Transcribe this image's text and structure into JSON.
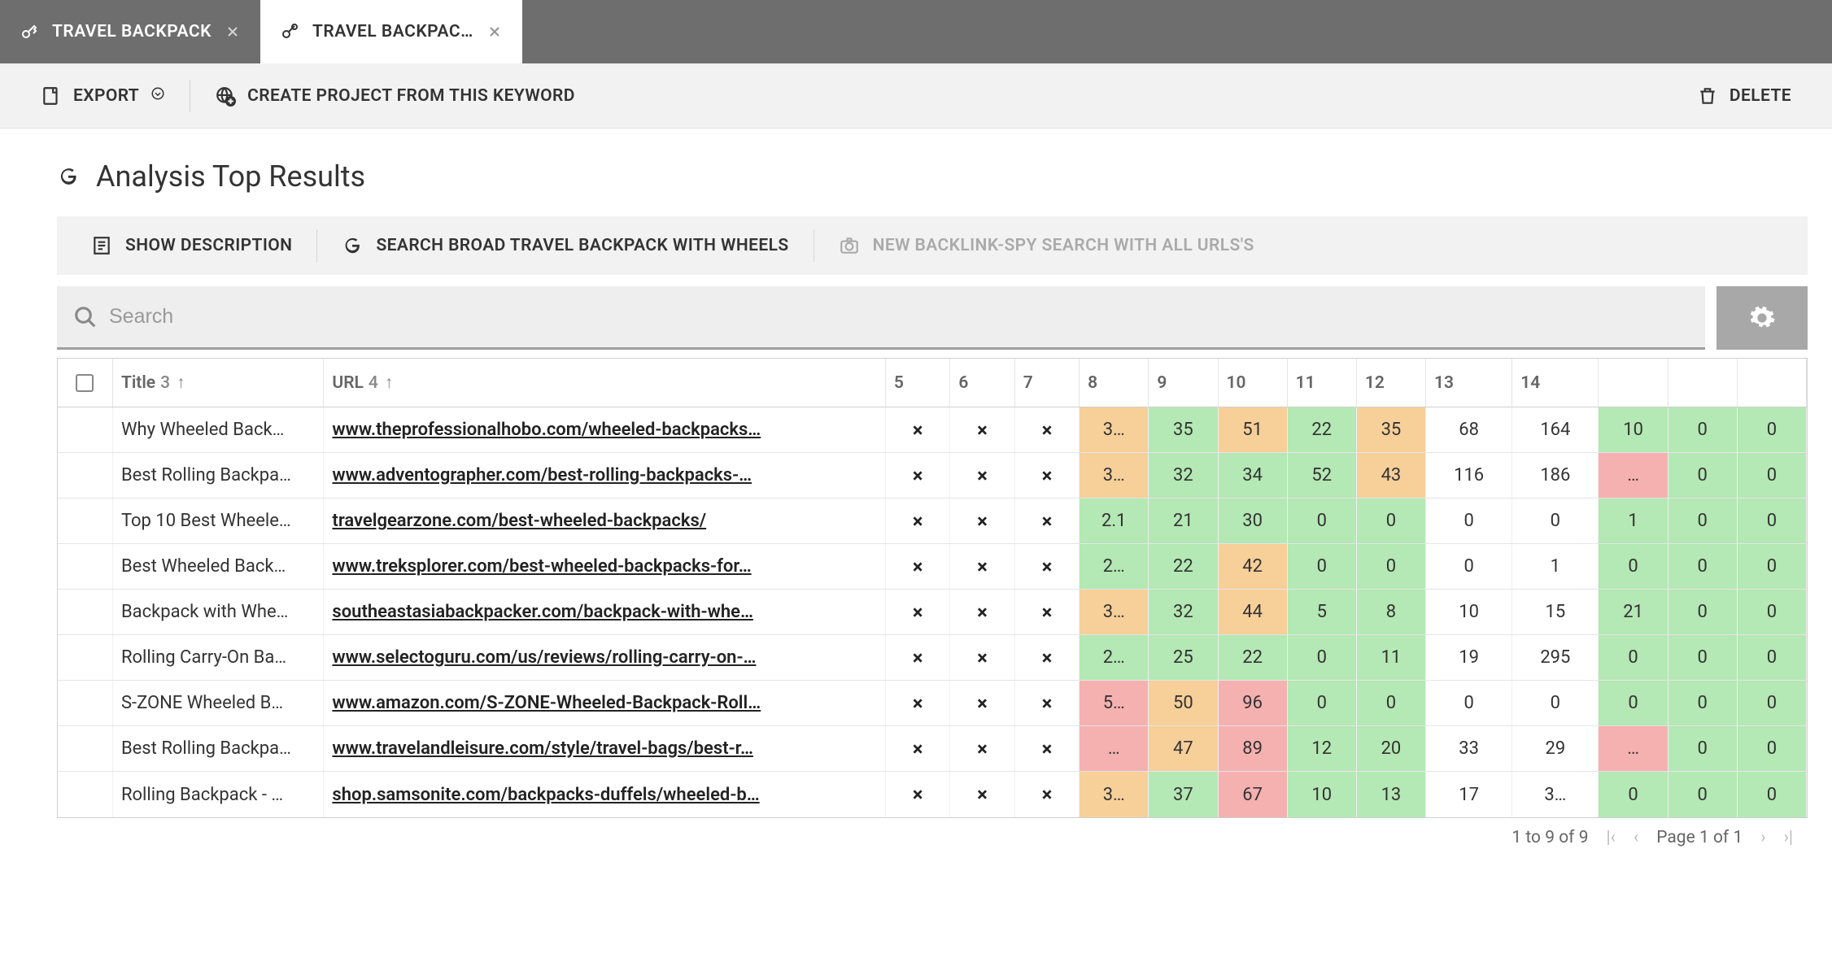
{
  "tabs": [
    {
      "label": "TRAVEL BACKPACK",
      "active": false
    },
    {
      "label": "TRAVEL BACKPAC…",
      "active": true
    }
  ],
  "toolbar": {
    "export": "EXPORT",
    "create_project": "CREATE PROJECT FROM THIS KEYWORD",
    "delete": "DELETE"
  },
  "page_title": "Analysis Top Results",
  "actions": {
    "show_description": "SHOW DESCRIPTION",
    "search_broad": "SEARCH BROAD TRAVEL BACKPACK WITH WHEELS",
    "backlink_spy": "NEW BACKLINK-SPY SEARCH WITH ALL URLS'S"
  },
  "search": {
    "placeholder": "Search"
  },
  "columns": {
    "title": {
      "label": "Title",
      "num": "3"
    },
    "url": {
      "label": "URL",
      "num": "4"
    },
    "c5": "5",
    "c6": "6",
    "c7": "7",
    "c8": "8",
    "c9": "9",
    "c10": "10",
    "c11": "11",
    "c12": "12",
    "c13": "13",
    "c14": "14"
  },
  "cell_colors": {
    "green": "#b4e8b4",
    "orange": "#f7cf99",
    "red": "#f5b0b0",
    "none": "#ffffff"
  },
  "rows": [
    {
      "title": "Why Wheeled Back…",
      "url": "www.theprofessionalhobo.com/wheeled-backpacks…",
      "v": [
        "×",
        "×",
        "×",
        "3…",
        "35",
        "51",
        "22",
        "35",
        "68",
        "164",
        "10",
        "0",
        "0"
      ],
      "c": [
        "",
        "",
        "",
        "orange",
        "green",
        "orange",
        "green",
        "orange",
        "",
        "",
        "green",
        "green",
        "green"
      ]
    },
    {
      "title": "Best Rolling Backpa…",
      "url": "www.adventographer.com/best-rolling-backpacks-…",
      "v": [
        "×",
        "×",
        "×",
        "3…",
        "32",
        "34",
        "52",
        "43",
        "116",
        "186",
        "…",
        "0",
        "0"
      ],
      "c": [
        "",
        "",
        "",
        "orange",
        "green",
        "green",
        "green",
        "orange",
        "",
        "",
        "red",
        "green",
        "green"
      ]
    },
    {
      "title": "Top 10 Best Wheele…",
      "url": "travelgearzone.com/best-wheeled-backpacks/",
      "v": [
        "×",
        "×",
        "×",
        "2.1",
        "21",
        "30",
        "0",
        "0",
        "0",
        "0",
        "1",
        "0",
        "0"
      ],
      "c": [
        "",
        "",
        "",
        "green",
        "green",
        "green",
        "green",
        "green",
        "",
        "",
        "green",
        "green",
        "green"
      ]
    },
    {
      "title": "Best Wheeled Back…",
      "url": "www.treksplorer.com/best-wheeled-backpacks-for…",
      "v": [
        "×",
        "×",
        "×",
        "2…",
        "22",
        "42",
        "0",
        "0",
        "0",
        "1",
        "0",
        "0",
        "0"
      ],
      "c": [
        "",
        "",
        "",
        "green",
        "green",
        "orange",
        "green",
        "green",
        "",
        "",
        "green",
        "green",
        "green"
      ]
    },
    {
      "title": "Backpack with Whe…",
      "url": "southeastasiabackpacker.com/backpack-with-whe…",
      "v": [
        "×",
        "×",
        "×",
        "3…",
        "32",
        "44",
        "5",
        "8",
        "10",
        "15",
        "21",
        "0",
        "0"
      ],
      "c": [
        "",
        "",
        "",
        "orange",
        "green",
        "orange",
        "green",
        "green",
        "",
        "",
        "green",
        "green",
        "green"
      ]
    },
    {
      "title": "Rolling Carry-On Ba…",
      "url": "www.selectoguru.com/us/reviews/rolling-carry-on-…",
      "v": [
        "×",
        "×",
        "×",
        "2…",
        "25",
        "22",
        "0",
        "11",
        "19",
        "295",
        "0",
        "0",
        "0"
      ],
      "c": [
        "",
        "",
        "",
        "green",
        "green",
        "green",
        "green",
        "green",
        "",
        "",
        "green",
        "green",
        "green"
      ]
    },
    {
      "title": "S-ZONE Wheeled B…",
      "url": "www.amazon.com/S-ZONE-Wheeled-Backpack-Roll…",
      "v": [
        "×",
        "×",
        "×",
        "5…",
        "50",
        "96",
        "0",
        "0",
        "0",
        "0",
        "0",
        "0",
        "0"
      ],
      "c": [
        "",
        "",
        "",
        "red",
        "orange",
        "red",
        "green",
        "green",
        "",
        "",
        "green",
        "green",
        "green"
      ]
    },
    {
      "title": "Best Rolling Backpa…",
      "url": "www.travelandleisure.com/style/travel-bags/best-r…",
      "v": [
        "×",
        "×",
        "×",
        "…",
        "47",
        "89",
        "12",
        "20",
        "33",
        "29",
        "…",
        "0",
        "0"
      ],
      "c": [
        "",
        "",
        "",
        "red",
        "orange",
        "red",
        "green",
        "green",
        "",
        "",
        "red",
        "green",
        "green"
      ]
    },
    {
      "title": "Rolling Backpack - …",
      "url": "shop.samsonite.com/backpacks-duffels/wheeled-b…",
      "v": [
        "×",
        "×",
        "×",
        "3…",
        "37",
        "67",
        "10",
        "13",
        "17",
        "3…",
        "0",
        "0",
        "0"
      ],
      "c": [
        "",
        "",
        "",
        "orange",
        "green",
        "red",
        "green",
        "green",
        "",
        "",
        "green",
        "green",
        "green"
      ]
    }
  ],
  "pager": {
    "range": "1 to 9 of 9",
    "page": "Page 1 of 1"
  }
}
